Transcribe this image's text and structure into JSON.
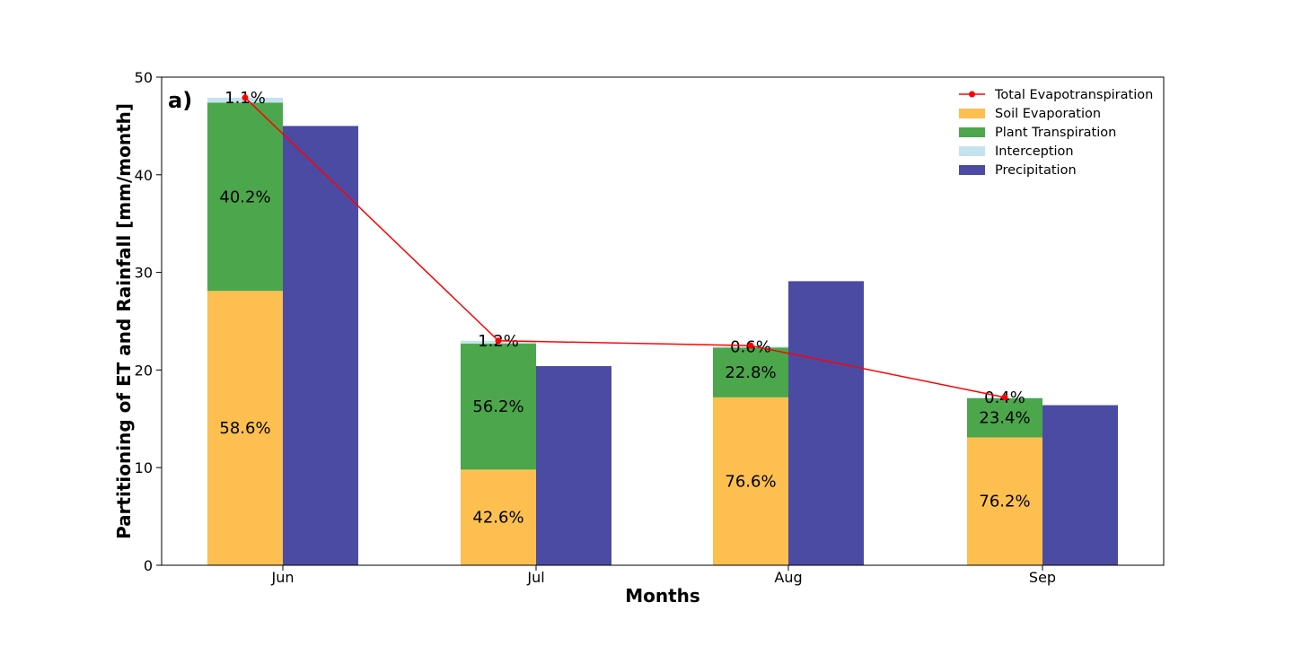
{
  "chart_data": {
    "type": "bar",
    "panel_label": "a)",
    "xlabel": "Months",
    "ylabel": "Partitioning of ET and Rainfall [mm/month]",
    "ylim": [
      0,
      50
    ],
    "yticks": [
      0,
      10,
      20,
      30,
      40,
      50
    ],
    "ytick_labels": [
      "0",
      "10",
      "20",
      "30",
      "40",
      "50"
    ],
    "categories": [
      "Jun",
      "Jul",
      "Aug",
      "Sep"
    ],
    "grid": false,
    "legend_position": "top-right",
    "stacked_series": [
      {
        "name": "Soil Evaporation",
        "color": "#FDBF4F",
        "values": [
          28.1,
          9.8,
          17.2,
          13.1
        ],
        "labels": [
          "58.6%",
          "42.6%",
          "76.6%",
          "76.2%"
        ]
      },
      {
        "name": "Plant Transpiration",
        "color": "#4CA64C",
        "values": [
          19.3,
          12.9,
          5.1,
          4.0
        ],
        "labels": [
          "40.2%",
          "56.2%",
          "22.8%",
          "23.4%"
        ]
      },
      {
        "name": "Interception",
        "color": "#C5E3EF",
        "values": [
          0.5,
          0.3,
          0.1,
          0.1
        ],
        "labels": [
          "1.1%",
          "1.2%",
          "0.6%",
          "0.4%"
        ]
      }
    ],
    "precipitation": {
      "name": "Precipitation",
      "color": "#4B4BA3",
      "values": [
        45.0,
        20.4,
        29.1,
        16.4
      ]
    },
    "total_et": {
      "name": "Total Evapotranspiration",
      "color": "#FF0000",
      "values": [
        47.9,
        23.0,
        22.5,
        17.2
      ]
    }
  }
}
